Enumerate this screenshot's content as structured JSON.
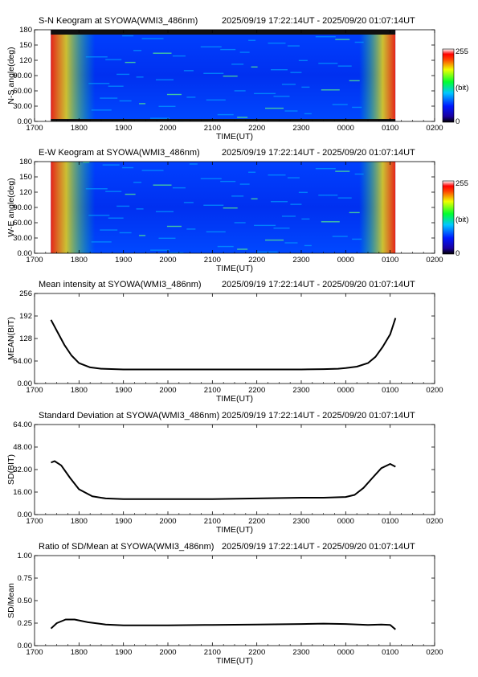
{
  "colors": {
    "background": "#ffffff",
    "axes": "#000000",
    "line": "#000000"
  },
  "chart_data": [
    {
      "type": "heatmap",
      "title": "S-N Keogram at SYOWA(WMI3_486nm)",
      "time_range": "2025/09/19 17:22:14UT - 2025/09/20 01:07:14UT",
      "xlabel": "TIME(UT)",
      "ylabel": "N-S angle(deg)",
      "xticks": [
        "1700",
        "1800",
        "1900",
        "2000",
        "2100",
        "2200",
        "2300",
        "0000",
        "0100",
        "0200"
      ],
      "yticks": [
        "0.00",
        "30.00",
        "60.00",
        "90.00",
        "120",
        "150",
        "180"
      ],
      "ylim": [
        0,
        180
      ],
      "colorbar": {
        "min_label": "0",
        "max_label": "255",
        "unit_label": "(bit)"
      },
      "data_x_range": [
        "17:22",
        "01:07"
      ],
      "colormap": "blue-green-yellow-red"
    },
    {
      "type": "heatmap",
      "title": "E-W Keogram at SYOWA(WMI3_486nm)",
      "time_range": "2025/09/19 17:22:14UT - 2025/09/20 01:07:14UT",
      "xlabel": "TIME(UT)",
      "ylabel": "W-E angle(deg)",
      "xticks": [
        "1700",
        "1800",
        "1900",
        "2000",
        "2100",
        "2200",
        "2300",
        "0000",
        "0100",
        "0200"
      ],
      "yticks": [
        "0.00",
        "30.00",
        "60.00",
        "90.00",
        "120",
        "150",
        "180"
      ],
      "ylim": [
        0,
        180
      ],
      "colorbar": {
        "min_label": "0",
        "max_label": "255",
        "unit_label": "(bit)"
      },
      "data_x_range": [
        "17:22",
        "01:07"
      ],
      "colormap": "blue-green-yellow-red"
    },
    {
      "type": "line",
      "title": "Mean intensity at SYOWA(WMI3_486nm)",
      "time_range": "2025/09/19 17:22:14UT - 2025/09/20 01:07:14UT",
      "xlabel": "TIME(UT)",
      "ylabel": "MEAN(BIT)",
      "xticks": [
        "1700",
        "1800",
        "1900",
        "2000",
        "2100",
        "2200",
        "2300",
        "0000",
        "0100",
        "0200"
      ],
      "yticks": [
        "0.00",
        "64.00",
        "128",
        "192",
        "256"
      ],
      "ylim": [
        0,
        256
      ],
      "x_hours": [
        17.37,
        17.5,
        17.67,
        17.83,
        18.0,
        18.25,
        18.5,
        19.0,
        20.0,
        21.0,
        22.0,
        23.0,
        23.5,
        23.83,
        24.0,
        24.25,
        24.5,
        24.67,
        24.83,
        25.0,
        25.12
      ],
      "values": [
        181,
        150,
        110,
        80,
        58,
        46,
        42,
        40,
        40,
        40,
        40,
        40,
        41,
        42,
        44,
        48,
        58,
        76,
        104,
        140,
        186
      ]
    },
    {
      "type": "line",
      "title": "Standard Deviation at SYOWA(WMI3_486nm)",
      "time_range": "2025/09/19 17:22:14UT - 2025/09/20 01:07:14UT",
      "xlabel": "TIME(UT)",
      "ylabel": "SD(BIT)",
      "xticks": [
        "1700",
        "1800",
        "1900",
        "2000",
        "2100",
        "2200",
        "2300",
        "0000",
        "0100",
        "0200"
      ],
      "yticks": [
        "0.00",
        "16.00",
        "32.00",
        "48.00",
        "64.00"
      ],
      "ylim": [
        0,
        64
      ],
      "x_hours": [
        17.37,
        17.45,
        17.6,
        17.8,
        18.0,
        18.3,
        18.6,
        19.0,
        20.0,
        21.0,
        22.0,
        23.0,
        23.5,
        24.0,
        24.2,
        24.4,
        24.6,
        24.8,
        25.0,
        25.12
      ],
      "values": [
        37,
        38,
        35,
        26,
        18,
        13,
        11.5,
        11,
        11,
        11,
        11.5,
        12,
        12,
        12.5,
        14,
        19,
        26,
        33,
        36,
        34
      ]
    },
    {
      "type": "line",
      "title": "Ratio of SD/Mean at SYOWA(WMI3_486nm)",
      "time_range": "2025/09/19 17:22:14UT - 2025/09/20 01:07:14UT",
      "xlabel": "TIME(UT)",
      "ylabel": "SD/Mean",
      "xticks": [
        "1700",
        "1800",
        "1900",
        "2000",
        "2100",
        "2200",
        "2300",
        "0000",
        "0100",
        "0200"
      ],
      "yticks": [
        "0.00",
        "0.25",
        "0.50",
        "0.75",
        "1.00"
      ],
      "ylim": [
        0,
        1
      ],
      "x_hours": [
        17.37,
        17.5,
        17.7,
        17.9,
        18.2,
        18.6,
        19.0,
        20.0,
        21.0,
        22.0,
        23.0,
        23.5,
        24.0,
        24.5,
        24.8,
        25.0,
        25.12
      ],
      "values": [
        0.19,
        0.25,
        0.29,
        0.29,
        0.26,
        0.235,
        0.225,
        0.225,
        0.23,
        0.235,
        0.24,
        0.245,
        0.24,
        0.23,
        0.235,
        0.23,
        0.18
      ]
    }
  ]
}
